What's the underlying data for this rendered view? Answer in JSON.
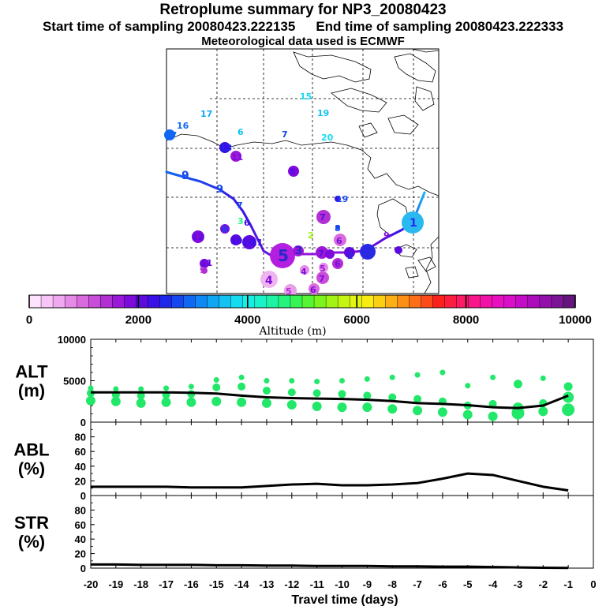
{
  "header": {
    "title": "Retroplume summary for NP3_20080423",
    "start_label": "Start time of sampling 20080423.222135",
    "end_label": "End time of sampling 20080423.222333",
    "met_label": "Meteorological data used is ECMWF"
  },
  "colorbar": {
    "label": "Altitude (m)",
    "ticks": [
      "0",
      "2000",
      "4000",
      "6000",
      "8000",
      "10000"
    ],
    "min": 0,
    "max": 10000,
    "colors": [
      "#fde3fd",
      "#f7c5f7",
      "#f0a8f0",
      "#e68ae8",
      "#d96bde",
      "#c84dd8",
      "#b22fd4",
      "#9a18d8",
      "#7d0cdc",
      "#5c0ae0",
      "#3a10e6",
      "#1f28ea",
      "#1448ee",
      "#1068f2",
      "#0e88f4",
      "#10a6f4",
      "#12c2f2",
      "#14dcf0",
      "#16eee6",
      "#18f4c8",
      "#1cf4a4",
      "#24f47c",
      "#36f456",
      "#56f432",
      "#7cf41c",
      "#a2f414",
      "#c4f412",
      "#e2f412",
      "#f8ec12",
      "#fcd012",
      "#fcb014",
      "#fc9016",
      "#fc6e18",
      "#fc4a1a",
      "#fc221c",
      "#fc1e40",
      "#fc1a66",
      "#f8168a",
      "#f212a8",
      "#e810be",
      "#d80ec8",
      "#c40cc8",
      "#ac0cbc",
      "#9410ac",
      "#7c1496",
      "#64167e"
    ]
  },
  "map": {
    "day_labels": [
      {
        "n": "1",
        "color": "#2828f0"
      },
      {
        "n": "2",
        "color": "#2a2ad8"
      },
      {
        "n": "3",
        "color": "#9a18d8"
      },
      {
        "n": "4",
        "color": "#e0a0e8"
      },
      {
        "n": "5",
        "color": "#b400e0"
      },
      {
        "n": "6",
        "color": "#c84dd8"
      },
      {
        "n": "7",
        "color": "#9a18d8"
      },
      {
        "n": "8",
        "color": "#1448ee"
      },
      {
        "n": "9",
        "color": "#1448ee"
      },
      {
        "n": "10",
        "color": "#5c0ae0"
      },
      {
        "n": "11",
        "color": "#3a10e6"
      },
      {
        "n": "12",
        "color": "#7d0cdc"
      },
      {
        "n": "13",
        "color": "#1068f2"
      },
      {
        "n": "15",
        "color": "#14dcf0"
      },
      {
        "n": "16",
        "color": "#1068f2"
      },
      {
        "n": "17",
        "color": "#10a6f4"
      },
      {
        "n": "19",
        "color": "#12c2f2"
      },
      {
        "n": "20",
        "color": "#14dcf0"
      }
    ]
  },
  "chart_data": [
    {
      "type": "scatter",
      "panel": "ALT",
      "ylabel_line1": "ALT",
      "ylabel_line2": "(m)",
      "ylim": [
        0,
        10000
      ],
      "yticks": [
        "0",
        "5000",
        "10000"
      ],
      "line": {
        "x": [
          -20,
          -19,
          -18,
          -17,
          -16,
          -15,
          -14,
          -13,
          -12,
          -11,
          -10,
          -9,
          -8,
          -7,
          -6,
          -5,
          -4,
          -3,
          -2,
          -1
        ],
        "y": [
          3600,
          3600,
          3600,
          3600,
          3550,
          3450,
          3200,
          3000,
          2900,
          2850,
          2800,
          2700,
          2550,
          2300,
          2200,
          2050,
          1800,
          1700,
          2000,
          3200
        ]
      },
      "clusters": [
        {
          "x": -20,
          "y": [
            4100,
            3500,
            2600
          ]
        },
        {
          "x": -19,
          "y": [
            4000,
            3300,
            2500
          ]
        },
        {
          "x": -18,
          "y": [
            4000,
            3200,
            2300
          ]
        },
        {
          "x": -17,
          "y": [
            4100,
            3300,
            2400
          ]
        },
        {
          "x": -16,
          "y": [
            4300,
            3400,
            2400
          ]
        },
        {
          "x": -15,
          "y": [
            5100,
            4200,
            2500
          ]
        },
        {
          "x": -14,
          "y": [
            5400,
            4300,
            2400
          ]
        },
        {
          "x": -13,
          "y": [
            5000,
            3800,
            2300
          ]
        },
        {
          "x": -12,
          "y": [
            5000,
            3600,
            2100
          ]
        },
        {
          "x": -11,
          "y": [
            4900,
            3500,
            1900
          ]
        },
        {
          "x": -10,
          "y": [
            5000,
            3400,
            1800
          ]
        },
        {
          "x": -9,
          "y": [
            5200,
            3200,
            1800
          ]
        },
        {
          "x": -8,
          "y": [
            5400,
            3000,
            1600
          ]
        },
        {
          "x": -7,
          "y": [
            5700,
            2800,
            1400
          ]
        },
        {
          "x": -6,
          "y": [
            6000,
            2500,
            1200
          ]
        },
        {
          "x": -5,
          "y": [
            4400,
            2000,
            900
          ]
        },
        {
          "x": -4,
          "y": [
            5400,
            2200,
            700
          ]
        },
        {
          "x": -3,
          "y": [
            4600,
            1700,
            1100
          ]
        },
        {
          "x": -2,
          "y": [
            5300,
            2300,
            1300
          ]
        },
        {
          "x": -1,
          "y": [
            4300,
            3000,
            1500
          ]
        }
      ]
    },
    {
      "type": "line",
      "panel": "ABL",
      "ylabel_line1": "ABL",
      "ylabel_line2": "(%)",
      "ylim": [
        0,
        100
      ],
      "yticks": [
        "0",
        "20",
        "40",
        "60",
        "80"
      ],
      "x": [
        -20,
        -19,
        -18,
        -17,
        -16,
        -15,
        -14,
        -13,
        -12,
        -11,
        -10,
        -9,
        -8,
        -7,
        -6,
        -5,
        -4,
        -3,
        -2,
        -1
      ],
      "values": [
        12,
        12,
        12,
        12,
        11,
        11,
        11,
        13,
        15,
        16,
        14,
        14,
        15,
        17,
        23,
        30,
        28,
        20,
        12,
        7
      ]
    },
    {
      "type": "line",
      "panel": "STR",
      "ylabel_line1": "STR",
      "ylabel_line2": "(%)",
      "ylim": [
        0,
        100
      ],
      "yticks": [
        "0",
        "20",
        "40",
        "60",
        "80"
      ],
      "x": [
        -20,
        -19,
        -18,
        -17,
        -16,
        -15,
        -14,
        -13,
        -12,
        -11,
        -10,
        -9,
        -8,
        -7,
        -6,
        -5,
        -4,
        -3,
        -2,
        -1
      ],
      "values": [
        5,
        5,
        4.5,
        4.5,
        4.5,
        4,
        4,
        3.5,
        3.5,
        3,
        3,
        3,
        2.5,
        2.5,
        2,
        2,
        1.5,
        1,
        0.5,
        0.3
      ]
    }
  ],
  "xaxis": {
    "label": "Travel time (days)",
    "ticks": [
      "-20",
      "-19",
      "-18",
      "-17",
      "-16",
      "-15",
      "-14",
      "-13",
      "-12",
      "-11",
      "-10",
      "-9",
      "-8",
      "-7",
      "-6",
      "-5",
      "-4",
      "-3",
      "-2",
      "-1",
      "0"
    ]
  }
}
